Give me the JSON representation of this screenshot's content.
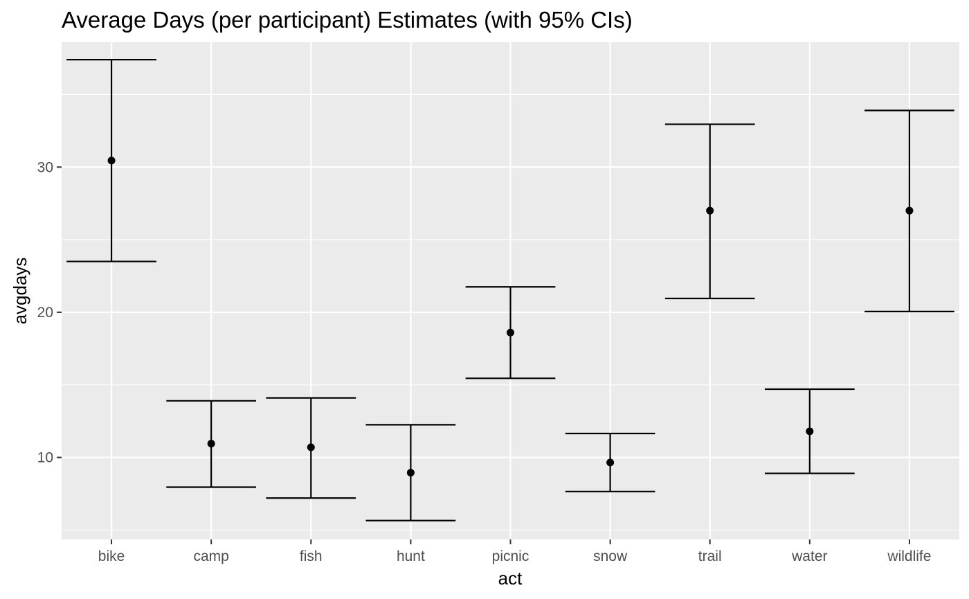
{
  "chart_data": {
    "type": "errorbar",
    "title": "Average Days (per participant) Estimates (with 95% CIs)",
    "xlabel": "act",
    "ylabel": "avgdays",
    "categories": [
      "bike",
      "camp",
      "fish",
      "hunt",
      "picnic",
      "snow",
      "trail",
      "water",
      "wildlife"
    ],
    "estimates": [
      30.45,
      10.95,
      10.7,
      8.95,
      18.6,
      9.65,
      27.0,
      11.8,
      27.0
    ],
    "lower": [
      23.5,
      7.95,
      7.2,
      5.65,
      15.45,
      7.65,
      20.95,
      8.9,
      20.05
    ],
    "upper": [
      37.4,
      13.9,
      14.1,
      12.25,
      21.75,
      11.65,
      32.95,
      14.7,
      33.9
    ],
    "yticks": [
      10,
      20,
      30
    ],
    "ylim": [
      4.35,
      38.6
    ],
    "grid": true,
    "colors": {
      "panel": "#ebebeb",
      "grid": "#ffffff",
      "marks": "#000000",
      "tick_text": "#4d4d4d"
    }
  }
}
